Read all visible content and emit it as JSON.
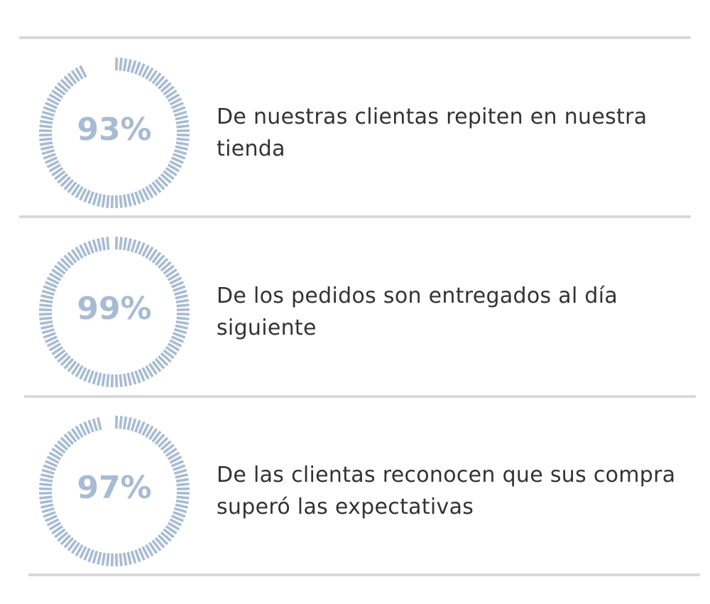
{
  "colors": {
    "gauge": "#a7bbd3",
    "text": "#333333",
    "divider": "#d9d9d9"
  },
  "chart_data": {
    "type": "radial-gauge",
    "unit": "%",
    "items": [
      {
        "value": 93,
        "label": "93%",
        "text": "De nuestras clientas repiten en nuestra tienda"
      },
      {
        "value": 99,
        "label": "99%",
        "text": "De los pedidos son entregados al día siguiente"
      },
      {
        "value": 97,
        "label": "97%",
        "text": "De las clientas reconocen que sus compra superó las expectativas"
      }
    ]
  }
}
